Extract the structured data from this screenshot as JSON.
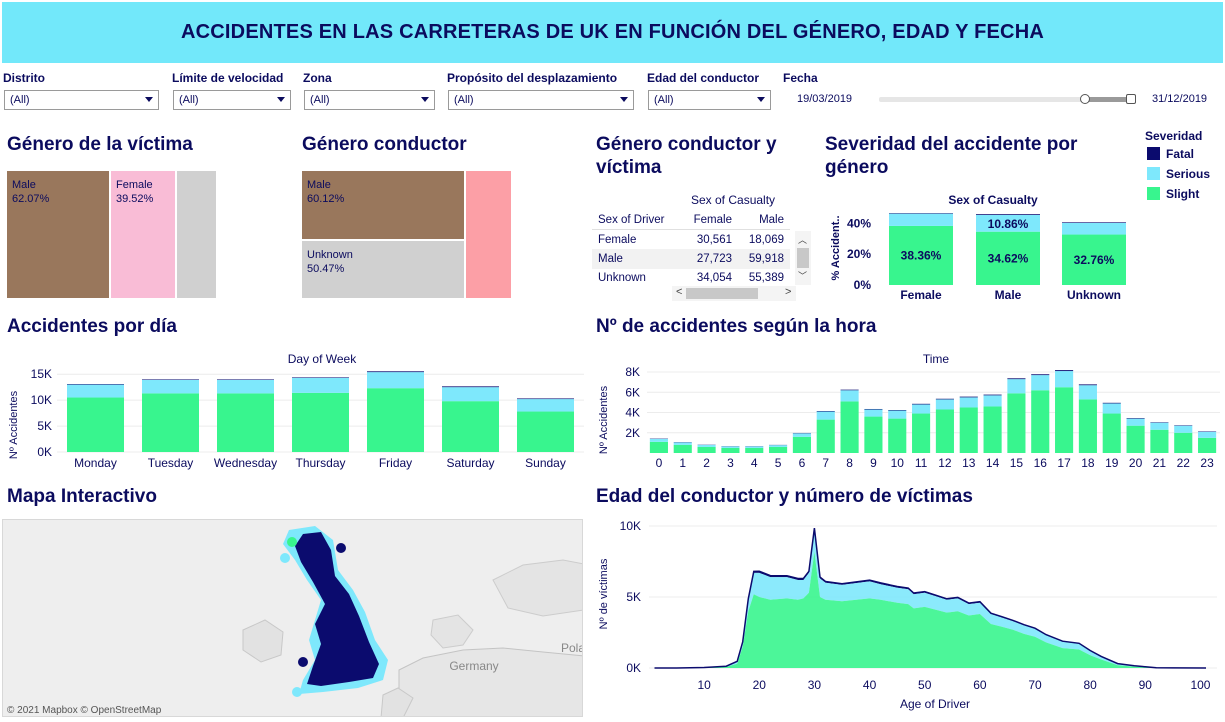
{
  "header": {
    "title": "ACCIDENTES EN LAS CARRETERAS DE UK EN FUNCIÓN DEL GÉNERO, EDAD Y FECHA"
  },
  "colors": {
    "header_bg": "#72e8fa",
    "fatal": "#0b0b6e",
    "serious": "#7ee8fc",
    "slight": "#38f58e",
    "text": "#0b0b5e",
    "male": "#99775c",
    "female": "#f9bcd6",
    "unknown": "#d0d0d0",
    "unknown_pink": "#fc9fa6"
  },
  "filters": [
    {
      "label": "Distrito",
      "value": "(All)"
    },
    {
      "label": "Límite de velocidad",
      "value": "(All)"
    },
    {
      "label": "Zona",
      "value": "(All)"
    },
    {
      "label": "Propósito del desplazamiento",
      "value": "(All)"
    },
    {
      "label": "Edad del conductor",
      "value": "(All)"
    }
  ],
  "fecha": {
    "label": "Fecha",
    "start": "19/03/2019",
    "end": "31/12/2019",
    "range_start_fraction": 0.82,
    "range_end_fraction": 1.0
  },
  "genero_victima": {
    "title": "Género de la víctima",
    "cells": [
      {
        "label": "Male",
        "pct": "62.07%"
      },
      {
        "label": "Female",
        "pct": "39.52%"
      },
      {
        "label": "",
        "pct": ""
      }
    ]
  },
  "genero_conductor": {
    "title": "Género conductor",
    "cells": [
      {
        "label": "Male",
        "pct": "60.12%"
      },
      {
        "label": "Unknown",
        "pct": "50.47%"
      },
      {
        "label": "",
        "pct": ""
      }
    ]
  },
  "crosstab": {
    "title": "Género conductor y víctima",
    "col_header": "Sex of Casualty",
    "row_header": "Sex of Driver",
    "columns": [
      "Female",
      "Male"
    ],
    "rows": [
      {
        "label": "Female",
        "values": [
          "30,561",
          "18,069"
        ]
      },
      {
        "label": "Male",
        "values": [
          "27,723",
          "59,918"
        ]
      },
      {
        "label": "Unknown",
        "values": [
          "34,054",
          "55,389"
        ]
      }
    ]
  },
  "severidad_genero": {
    "title": "Severidad del accidente por género",
    "col_header": "Sex of Casualty",
    "ylabel": "% Accident..",
    "yticks": [
      "40%",
      "20%",
      "0%"
    ],
    "chart_data": {
      "type": "bar",
      "categories": [
        "Female",
        "Male",
        "Unknown"
      ],
      "series": [
        {
          "name": "Slight",
          "values": [
            38.36,
            34.62,
            32.76
          ]
        },
        {
          "name": "Serious",
          "values": [
            8.0,
            10.86,
            7.5
          ]
        },
        {
          "name": "Fatal",
          "values": [
            0.3,
            0.5,
            0.4
          ]
        }
      ],
      "labels": [
        "38.36%",
        "34.62%",
        "32.76%"
      ],
      "serious_label": "10.86%",
      "ylim": [
        0,
        50
      ]
    }
  },
  "legend": {
    "title": "Severidad",
    "items": [
      {
        "name": "Fatal",
        "color": "#0b0b6e"
      },
      {
        "name": "Serious",
        "color": "#7ee8fc"
      },
      {
        "name": "Slight",
        "color": "#38f58e"
      }
    ]
  },
  "por_dia": {
    "title": "Accidentes por día",
    "xlabel": "Day of Week",
    "ylabel": "Nº Accidentes",
    "chart_data": {
      "type": "bar",
      "categories": [
        "Monday",
        "Tuesday",
        "Wednesday",
        "Thursday",
        "Friday",
        "Saturday",
        "Sunday"
      ],
      "series": [
        {
          "name": "Slight",
          "values": [
            10500,
            11300,
            11300,
            11400,
            12300,
            9800,
            7800
          ]
        },
        {
          "name": "Serious",
          "values": [
            2500,
            2600,
            2600,
            2900,
            3100,
            2700,
            2400
          ]
        },
        {
          "name": "Fatal",
          "values": [
            100,
            100,
            100,
            100,
            150,
            150,
            120
          ]
        }
      ],
      "yticks": [
        "15K",
        "10K",
        "5K",
        "0K"
      ],
      "ylim": [
        0,
        16000
      ]
    }
  },
  "por_hora": {
    "title": "Nº de accidentes según la hora",
    "xlabel": "Time",
    "ylabel": "Nº Accidentes",
    "chart_data": {
      "type": "bar",
      "categories": [
        "0",
        "1",
        "2",
        "3",
        "4",
        "5",
        "6",
        "7",
        "8",
        "9",
        "10",
        "11",
        "12",
        "13",
        "14",
        "15",
        "16",
        "17",
        "18",
        "19",
        "20",
        "21",
        "22",
        "23"
      ],
      "series": [
        {
          "name": "Slight",
          "values": [
            1100,
            800,
            600,
            500,
            500,
            600,
            1600,
            3300,
            5100,
            3600,
            3400,
            3900,
            4300,
            4500,
            4600,
            5900,
            6200,
            6500,
            5300,
            3900,
            2700,
            2300,
            2000,
            1500
          ]
        },
        {
          "name": "Serious",
          "values": [
            300,
            250,
            200,
            150,
            150,
            180,
            350,
            800,
            1100,
            700,
            800,
            900,
            1000,
            1000,
            1100,
            1400,
            1500,
            1600,
            1400,
            1000,
            700,
            700,
            700,
            600
          ]
        },
        {
          "name": "Fatal",
          "values": [
            30,
            25,
            20,
            20,
            20,
            20,
            30,
            50,
            60,
            50,
            50,
            60,
            60,
            70,
            70,
            80,
            80,
            90,
            80,
            60,
            50,
            40,
            40,
            40
          ]
        }
      ],
      "yticks": [
        "8K",
        "6K",
        "4K",
        "2K"
      ],
      "ylim": [
        0,
        8500
      ]
    }
  },
  "mapa": {
    "title": "Mapa Interactivo",
    "attribution": "© 2021 Mapbox © OpenStreetMap",
    "labels": [
      "Germany",
      "Pola"
    ]
  },
  "edad": {
    "title": "Edad del conductor y número de víctimas",
    "xlabel": "Age of Driver",
    "ylabel": "Nº de víctimas",
    "yticks": [
      "10K",
      "5K",
      "0K"
    ],
    "xticks": [
      "10",
      "20",
      "30",
      "40",
      "50",
      "60",
      "70",
      "80",
      "90",
      "100"
    ],
    "chart_data": {
      "type": "area",
      "x": [
        1,
        5,
        10,
        14,
        16,
        17,
        18,
        19,
        20,
        22,
        25,
        27,
        28,
        29,
        30,
        31,
        32,
        35,
        40,
        42,
        45,
        47,
        48,
        50,
        52,
        54,
        56,
        58,
        60,
        62,
        64,
        66,
        68,
        70,
        72,
        75,
        78,
        80,
        82,
        85,
        88,
        90,
        92,
        95,
        101
      ],
      "series": [
        {
          "name": "Slight",
          "values": [
            0,
            0,
            20,
            80,
            300,
            1500,
            4000,
            5200,
            5000,
            4800,
            4900,
            4800,
            4900,
            5300,
            8200,
            5000,
            4800,
            4700,
            4900,
            4800,
            4600,
            4500,
            4200,
            4300,
            4100,
            3900,
            4000,
            3700,
            3800,
            3100,
            2900,
            2700,
            2400,
            2200,
            1800,
            1400,
            1300,
            900,
            600,
            200,
            100,
            50,
            10,
            5,
            0
          ]
        },
        {
          "name": "Serious",
          "values": [
            0,
            0,
            10,
            40,
            150,
            300,
            800,
            1500,
            1700,
            1600,
            1500,
            1400,
            1300,
            1400,
            1500,
            1300,
            1200,
            1150,
            1200,
            1100,
            1050,
            1050,
            1000,
            1000,
            950,
            900,
            900,
            800,
            800,
            700,
            650,
            600,
            600,
            550,
            500,
            450,
            400,
            300,
            200,
            100,
            50,
            30,
            10,
            5,
            0
          ]
        },
        {
          "name": "Fatal",
          "values": [
            0,
            0,
            5,
            10,
            20,
            40,
            80,
            100,
            120,
            110,
            100,
            100,
            100,
            110,
            150,
            100,
            90,
            90,
            90,
            90,
            90,
            80,
            80,
            80,
            80,
            70,
            70,
            70,
            70,
            60,
            60,
            50,
            50,
            50,
            50,
            40,
            40,
            30,
            20,
            10,
            10,
            5,
            0,
            0,
            0
          ]
        }
      ],
      "ylim": [
        0,
        10000
      ],
      "xlim": [
        0,
        103
      ]
    }
  }
}
